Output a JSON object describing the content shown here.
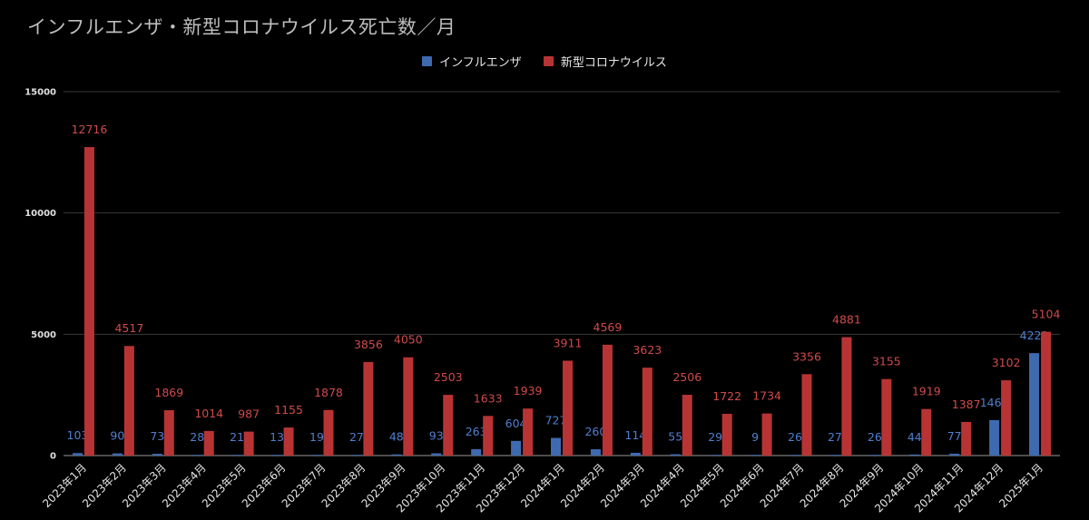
{
  "title": "インフルエンザ・新型コロナウイルス死亡数／月",
  "colors": {
    "flu": "#3e6ab0",
    "covid": "#b83434",
    "flu_label": "#4f7fd0",
    "covid_label": "#d04a4a"
  },
  "chart_data": {
    "type": "bar",
    "title": "インフルエンザ・新型コロナウイルス死亡数／月",
    "xlabel": "",
    "ylabel": "",
    "ylim": [
      0,
      15000
    ],
    "yticks": [
      0,
      5000,
      10000,
      15000
    ],
    "grid": true,
    "legend": "top-center",
    "categories": [
      "2023年1月",
      "2023年2月",
      "2023年3月",
      "2023年4月",
      "2023年5月",
      "2023年6月",
      "2023年7月",
      "2023年8月",
      "2023年9月",
      "2023年10月",
      "2023年11月",
      "2023年12月",
      "2024年1月",
      "2024年2月",
      "2024年3月",
      "2024年4月",
      "2024年5月",
      "2024年6月",
      "2024年7月",
      "2024年8月",
      "2024年9月",
      "2024年10月",
      "2024年11月",
      "2024年12月",
      "2025年1月"
    ],
    "series": [
      {
        "name": "インフルエンザ",
        "values": [
          103,
          90,
          73,
          28,
          21,
          13,
          19,
          27,
          48,
          93,
          263,
          604,
          727,
          260,
          114,
          55,
          29,
          9,
          26,
          27,
          26,
          44,
          77,
          1461,
          4222
        ]
      },
      {
        "name": "新型コロナウイルス",
        "values": [
          12716,
          4517,
          1869,
          1014,
          987,
          1155,
          1878,
          3856,
          4050,
          2503,
          1633,
          1939,
          3911,
          4569,
          3623,
          2506,
          1722,
          1734,
          3356,
          4881,
          3155,
          1919,
          1387,
          3102,
          5104
        ]
      }
    ]
  }
}
